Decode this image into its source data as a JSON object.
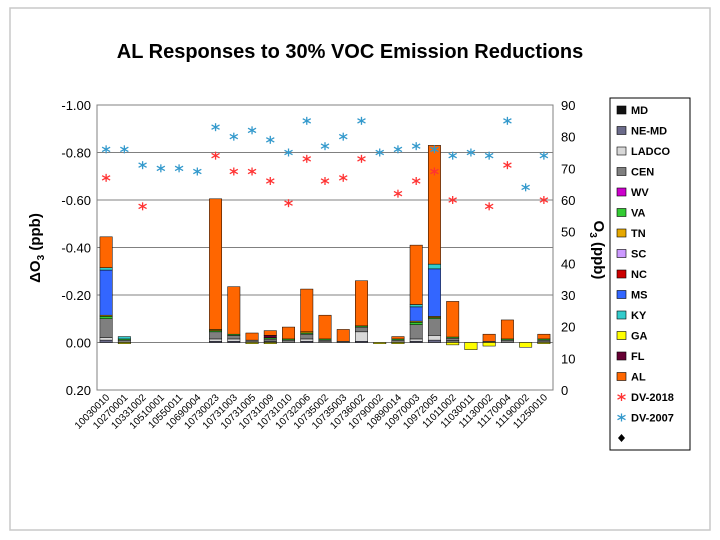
{
  "chart_data": {
    "type": "bar",
    "title": "AL Responses to 30% VOC Emission Reductions",
    "left_axis": {
      "label_prefix": "ΔO",
      "label_sub": "3",
      "label_suffix": " (ppb)",
      "range": [
        0.2,
        -1.0
      ],
      "ticks": [
        "-1.00",
        "-0.80",
        "-0.60",
        "-0.40",
        "-0.20",
        "0.00",
        "0.20"
      ],
      "tick_values": [
        -1.0,
        -0.8,
        -0.6,
        -0.4,
        -0.2,
        0.0,
        0.2
      ]
    },
    "right_axis": {
      "label_prefix": "O",
      "label_sub": "3",
      "label_suffix": " (ppb)",
      "range": [
        0,
        90
      ],
      "ticks": [
        "0",
        "10",
        "20",
        "30",
        "40",
        "50",
        "60",
        "70",
        "80",
        "90"
      ],
      "tick_values": [
        0,
        10,
        20,
        30,
        40,
        50,
        60,
        70,
        80,
        90
      ]
    },
    "categories": [
      "10030010",
      "10270001",
      "10331002",
      "10510001",
      "10550011",
      "10690004",
      "10730023",
      "10731003",
      "10731005",
      "10731009",
      "10731010",
      "10732006",
      "10735002",
      "10735003",
      "10736002",
      "10790002",
      "10890014",
      "10970003",
      "10972005",
      "11011002",
      "11030011",
      "11130002",
      "11170004",
      "11190002",
      "11250010"
    ],
    "stacked_series": [
      {
        "name": "MD",
        "color": "#111111",
        "values": [
          0,
          0,
          0,
          0,
          0,
          0,
          0,
          0,
          0,
          0,
          0,
          0,
          0,
          0,
          0,
          0,
          0,
          0,
          0,
          0,
          0,
          0,
          0,
          0,
          0
        ]
      },
      {
        "name": "NE-MD",
        "color": "#6b6b8a",
        "values": [
          -0.01,
          0,
          0,
          0,
          0,
          0,
          -0.005,
          -0.005,
          0,
          -0.005,
          0,
          -0.005,
          0,
          0,
          -0.005,
          0,
          0,
          -0.005,
          -0.01,
          -0.003,
          0,
          0,
          0,
          0,
          0
        ]
      },
      {
        "name": "LADCO",
        "color": "#d8d8d8",
        "values": [
          -0.01,
          0,
          0,
          0,
          0,
          0,
          -0.01,
          -0.01,
          -0.005,
          -0.005,
          0,
          -0.01,
          -0.005,
          0,
          -0.04,
          0,
          0,
          -0.01,
          -0.02,
          -0.005,
          0,
          0,
          0,
          0,
          -0.005
        ]
      },
      {
        "name": "CEN",
        "color": "#7f7f7f",
        "values": [
          -0.08,
          -0.01,
          0,
          0,
          0,
          0,
          -0.03,
          -0.015,
          -0.005,
          -0.005,
          -0.01,
          -0.02,
          -0.005,
          -0.005,
          -0.02,
          0,
          -0.01,
          -0.06,
          -0.07,
          -0.01,
          0,
          -0.005,
          -0.01,
          0,
          -0.005
        ]
      },
      {
        "name": "WV",
        "color": "#cc00cc",
        "values": [
          0,
          0,
          0,
          0,
          0,
          0,
          0,
          0,
          0,
          0,
          0,
          0,
          0,
          0,
          0,
          0,
          0,
          0,
          0,
          0,
          0,
          0,
          0,
          0,
          0
        ]
      },
      {
        "name": "VA",
        "color": "#33cc33",
        "values": [
          -0.01,
          -0.005,
          0,
          0,
          0,
          0,
          -0.005,
          -0.005,
          0,
          -0.005,
          -0.005,
          -0.005,
          -0.005,
          0,
          -0.005,
          0,
          -0.005,
          -0.01,
          -0.005,
          -0.005,
          0,
          0,
          -0.005,
          0,
          -0.005
        ]
      },
      {
        "name": "TN",
        "color": "#e6a800",
        "values": [
          -0.005,
          0,
          0,
          0,
          0,
          0,
          -0.005,
          0,
          0,
          0,
          0,
          -0.005,
          0,
          0,
          0,
          0,
          0,
          -0.005,
          -0.005,
          0,
          0,
          0,
          0,
          0,
          0
        ]
      },
      {
        "name": "SC",
        "color": "#cc99ff",
        "values": [
          0,
          0,
          0,
          0,
          0,
          0,
          0,
          0,
          0,
          0,
          0,
          0,
          0,
          0,
          0,
          0,
          0,
          0,
          0,
          0,
          0,
          0,
          0,
          0,
          0
        ]
      },
      {
        "name": "NC",
        "color": "#cc0000",
        "values": [
          0,
          0,
          0,
          0,
          0,
          0,
          0,
          0,
          0,
          0,
          0,
          0,
          0,
          0,
          0,
          0,
          0,
          0,
          0,
          0,
          0,
          0,
          0,
          0,
          0
        ]
      },
      {
        "name": "MS",
        "color": "#3366ff",
        "values": [
          -0.19,
          0,
          0,
          0,
          0,
          0,
          0,
          0,
          0,
          0,
          0,
          0,
          0,
          0,
          0,
          0,
          0,
          -0.06,
          -0.2,
          0,
          0,
          0,
          0,
          0,
          0
        ]
      },
      {
        "name": "KY",
        "color": "#33cccc",
        "values": [
          -0.01,
          -0.01,
          0,
          0,
          0,
          0,
          0,
          0,
          0,
          0,
          0,
          0,
          0,
          0,
          0,
          0,
          0,
          -0.01,
          -0.02,
          0,
          0,
          0,
          0,
          0,
          0
        ]
      },
      {
        "name": "GA",
        "color": "#ffff00",
        "values": [
          0,
          0.005,
          0,
          0,
          0,
          0,
          0,
          0,
          0.005,
          0.005,
          0,
          0,
          0,
          0,
          0,
          0.005,
          0.005,
          0,
          0,
          0.01,
          0.03,
          0.015,
          0,
          0.02,
          0.005
        ]
      },
      {
        "name": "FL",
        "color": "#660033",
        "values": [
          0,
          0,
          0,
          0,
          0,
          0,
          0,
          0,
          0,
          -0.01,
          0,
          0,
          0,
          0,
          0,
          0,
          0,
          0,
          0,
          0,
          0,
          0,
          0,
          0,
          0
        ]
      },
      {
        "name": "AL",
        "color": "#ff6600",
        "values": [
          -0.13,
          0,
          0,
          0,
          0,
          0,
          -0.55,
          -0.2,
          -0.03,
          -0.02,
          -0.05,
          -0.18,
          -0.1,
          -0.05,
          -0.19,
          0,
          -0.01,
          -0.25,
          -0.5,
          -0.15,
          0,
          -0.03,
          -0.08,
          0,
          -0.02
        ]
      }
    ],
    "marker_series": [
      {
        "name": "DV-2018",
        "marker": "*",
        "color": "#ff3333",
        "axis": "right",
        "values": [
          67,
          null,
          58,
          null,
          null,
          null,
          74,
          69,
          69,
          66,
          59,
          73,
          66,
          67,
          73,
          null,
          62,
          66,
          69,
          60,
          null,
          58,
          71,
          null,
          60
        ]
      },
      {
        "name": "DV-2007",
        "marker": "*",
        "color": "#3399cc",
        "axis": "right",
        "values": [
          76,
          76,
          71,
          70,
          70,
          69,
          83,
          80,
          82,
          79,
          75,
          85,
          77,
          80,
          85,
          75,
          76,
          77,
          76,
          74,
          75,
          74,
          85,
          64,
          74
        ]
      }
    ],
    "legend": {
      "placement": "right",
      "items": [
        {
          "label": "MD",
          "kind": "box",
          "color": "#111111"
        },
        {
          "label": "NE-MD",
          "kind": "box",
          "color": "#6b6b8a"
        },
        {
          "label": "LADCO",
          "kind": "box",
          "color": "#d8d8d8"
        },
        {
          "label": "CEN",
          "kind": "box",
          "color": "#7f7f7f"
        },
        {
          "label": "WV",
          "kind": "box",
          "color": "#cc00cc"
        },
        {
          "label": "VA",
          "kind": "box",
          "color": "#33cc33"
        },
        {
          "label": "TN",
          "kind": "box",
          "color": "#e6a800"
        },
        {
          "label": "SC",
          "kind": "box",
          "color": "#cc99ff"
        },
        {
          "label": "NC",
          "kind": "box",
          "color": "#cc0000"
        },
        {
          "label": "MS",
          "kind": "box",
          "color": "#3366ff"
        },
        {
          "label": "KY",
          "kind": "box",
          "color": "#33cccc"
        },
        {
          "label": "GA",
          "kind": "box",
          "color": "#ffff00"
        },
        {
          "label": "FL",
          "kind": "box",
          "color": "#660033"
        },
        {
          "label": "AL",
          "kind": "box",
          "color": "#ff6600"
        },
        {
          "label": "DV-2018",
          "kind": "star",
          "color": "#ff3333"
        },
        {
          "label": "DV-2007",
          "kind": "star",
          "color": "#3399cc"
        },
        {
          "label": "",
          "kind": "diamond",
          "color": "#000000"
        }
      ]
    },
    "gridlines": true
  }
}
